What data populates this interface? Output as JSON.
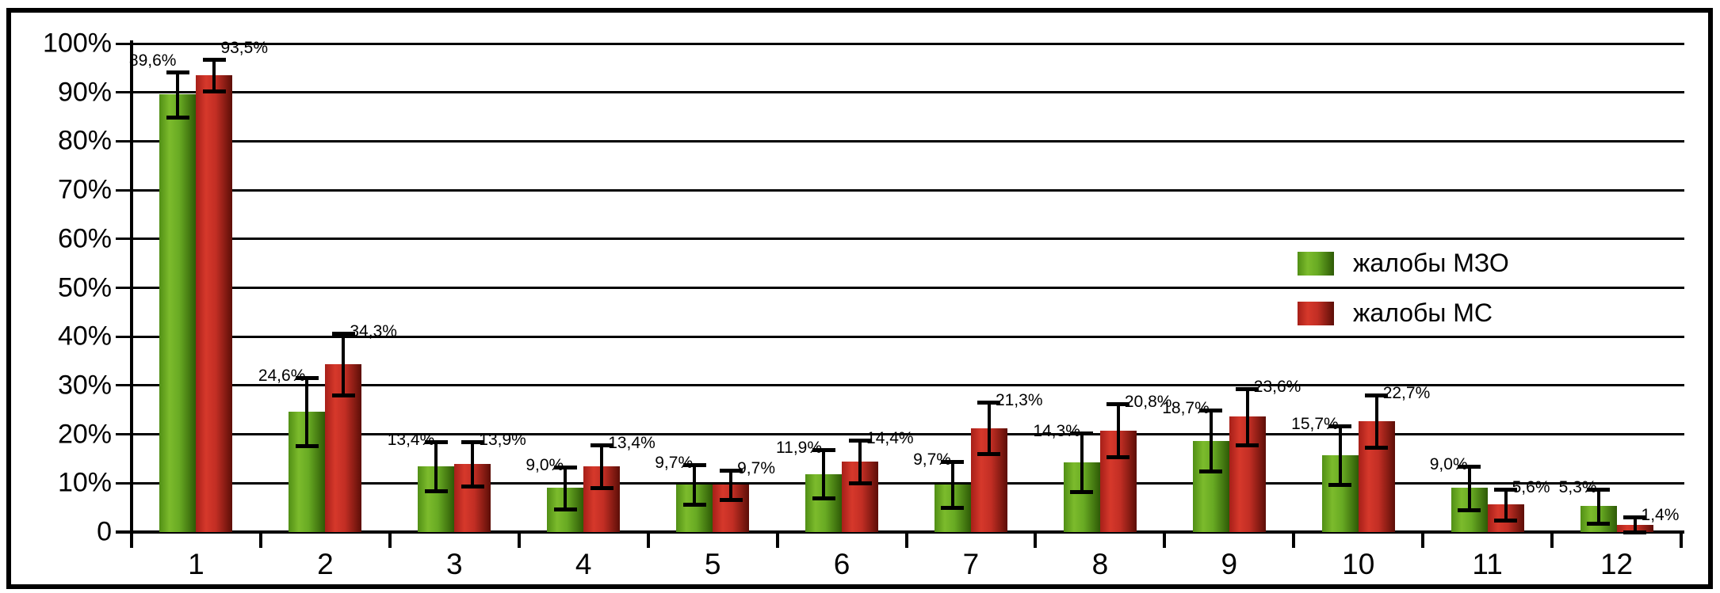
{
  "chart_data": {
    "type": "bar",
    "title": "",
    "xlabel": "",
    "ylabel": "",
    "categories": [
      "1",
      "2",
      "3",
      "4",
      "5",
      "6",
      "7",
      "8",
      "9",
      "10",
      "11",
      "12"
    ],
    "series": [
      {
        "name": "жалобы МЗО",
        "color": "#6aa81f",
        "color_light": "#7cbb2c",
        "color_dark": "#2e5a06",
        "values": [
          89.6,
          24.6,
          13.4,
          9.0,
          9.7,
          11.9,
          9.7,
          14.3,
          18.7,
          15.7,
          9.0,
          5.3
        ],
        "errors": [
          4.6,
          7.0,
          5.0,
          4.3,
          4.0,
          5.0,
          4.7,
          6.0,
          6.2,
          6.0,
          4.5,
          3.5
        ]
      },
      {
        "name": "жалобы МС",
        "color": "#c62b20",
        "color_light": "#d6382b",
        "color_dark": "#5c0e07",
        "values": [
          93.5,
          34.3,
          13.9,
          13.4,
          9.7,
          14.4,
          21.3,
          20.8,
          23.6,
          22.7,
          5.6,
          1.4
        ],
        "errors": [
          3.2,
          6.3,
          4.5,
          4.4,
          3.0,
          4.4,
          5.2,
          5.4,
          5.8,
          5.3,
          3.2,
          1.6
        ]
      }
    ],
    "ylim": [
      0,
      100
    ],
    "y_tick_step": 10,
    "y_tick_labels": [
      "0",
      "10%",
      "20%",
      "30%",
      "40%",
      "50%",
      "60%",
      "70%",
      "80%",
      "90%",
      "100%"
    ],
    "grid": true,
    "error_bars": true,
    "value_labels_shown": true,
    "decimal_separator": ",",
    "value_label_suffix": "%",
    "legend_position": "middle-right",
    "axis_color": "#000000",
    "background_color": "#ffffff"
  }
}
